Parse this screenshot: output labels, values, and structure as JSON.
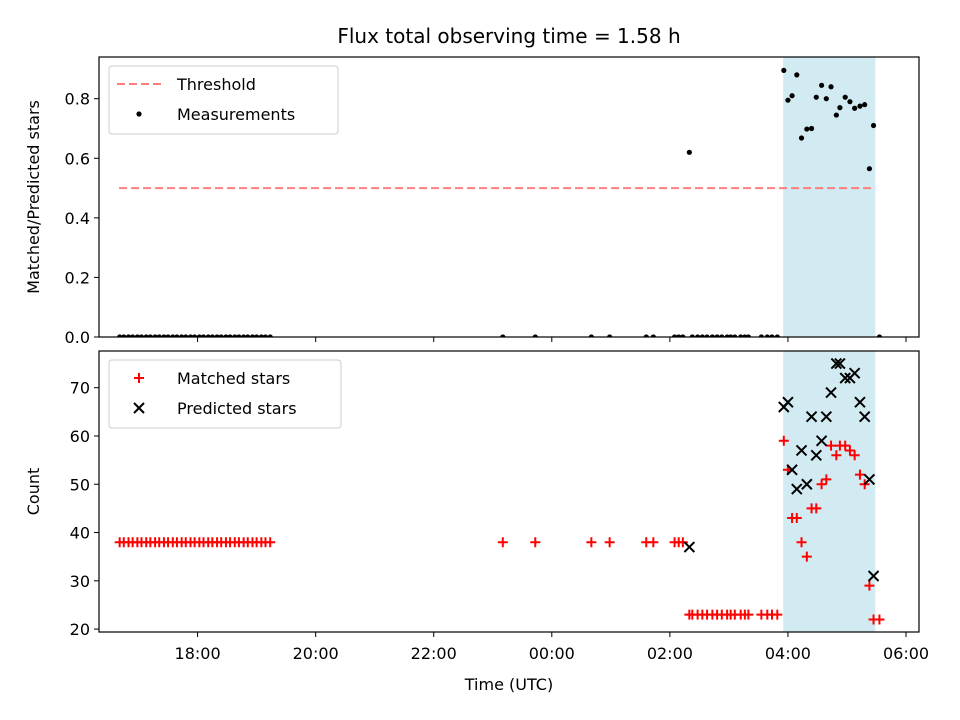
{
  "title": "Flux total observing time = 1.58 h",
  "colors": {
    "threshold": "#ff7f7f",
    "measurements": "#000000",
    "matched": "#ff0000",
    "predicted": "#000000",
    "highlight": "#add8e6"
  },
  "chart_data": [
    {
      "type": "scatter",
      "panel": "top",
      "xlabel": "",
      "ylabel": "Matched/Predicted stars",
      "xlim": [
        16.33,
        30.22
      ],
      "ylim": [
        0,
        0.94
      ],
      "yticks": [
        0.0,
        0.2,
        0.4,
        0.6,
        0.8
      ],
      "ytick_labels": [
        "0.0",
        "0.2",
        "0.4",
        "0.6",
        "0.8"
      ],
      "grid": false,
      "legend": "top-left",
      "highlight_span": [
        27.92,
        29.48
      ],
      "threshold": {
        "name": "Threshold",
        "value": 0.5,
        "x_range": [
          16.67,
          29.48
        ]
      },
      "series": [
        {
          "name": "Measurements",
          "marker": "dot",
          "points": [
            [
              16.68,
              0
            ],
            [
              16.75,
              0
            ],
            [
              16.83,
              0
            ],
            [
              16.9,
              0
            ],
            [
              16.98,
              0
            ],
            [
              17.05,
              0
            ],
            [
              17.13,
              0
            ],
            [
              17.2,
              0
            ],
            [
              17.28,
              0
            ],
            [
              17.35,
              0
            ],
            [
              17.43,
              0
            ],
            [
              17.5,
              0
            ],
            [
              17.58,
              0
            ],
            [
              17.65,
              0
            ],
            [
              17.73,
              0
            ],
            [
              17.8,
              0
            ],
            [
              17.88,
              0
            ],
            [
              17.95,
              0
            ],
            [
              18.03,
              0
            ],
            [
              18.1,
              0
            ],
            [
              18.18,
              0
            ],
            [
              18.25,
              0
            ],
            [
              18.33,
              0
            ],
            [
              18.4,
              0
            ],
            [
              18.48,
              0
            ],
            [
              18.55,
              0
            ],
            [
              18.63,
              0
            ],
            [
              18.7,
              0
            ],
            [
              18.78,
              0
            ],
            [
              18.85,
              0
            ],
            [
              18.93,
              0
            ],
            [
              19.0,
              0
            ],
            [
              19.08,
              0
            ],
            [
              19.15,
              0
            ],
            [
              19.23,
              0
            ],
            [
              23.17,
              0
            ],
            [
              23.72,
              0
            ],
            [
              24.67,
              0
            ],
            [
              24.98,
              0
            ],
            [
              25.6,
              0
            ],
            [
              25.72,
              0
            ],
            [
              26.08,
              0
            ],
            [
              26.15,
              0
            ],
            [
              26.22,
              0
            ],
            [
              26.33,
              0.62
            ],
            [
              26.38,
              0
            ],
            [
              26.47,
              0
            ],
            [
              26.55,
              0
            ],
            [
              26.63,
              0
            ],
            [
              26.72,
              0
            ],
            [
              26.8,
              0
            ],
            [
              26.88,
              0
            ],
            [
              26.97,
              0
            ],
            [
              27.03,
              0
            ],
            [
              27.1,
              0
            ],
            [
              27.2,
              0
            ],
            [
              27.27,
              0
            ],
            [
              27.33,
              0
            ],
            [
              27.55,
              0
            ],
            [
              27.65,
              0
            ],
            [
              27.73,
              0
            ],
            [
              27.82,
              0
            ],
            [
              27.93,
              0.895
            ],
            [
              28.0,
              0.795
            ],
            [
              28.07,
              0.81
            ],
            [
              28.15,
              0.88
            ],
            [
              28.23,
              0.668
            ],
            [
              28.32,
              0.698
            ],
            [
              28.4,
              0.7
            ],
            [
              28.48,
              0.805
            ],
            [
              28.57,
              0.845
            ],
            [
              28.65,
              0.8
            ],
            [
              28.73,
              0.84
            ],
            [
              28.82,
              0.745
            ],
            [
              28.88,
              0.77
            ],
            [
              28.97,
              0.805
            ],
            [
              29.05,
              0.79
            ],
            [
              29.13,
              0.768
            ],
            [
              29.22,
              0.775
            ],
            [
              29.3,
              0.78
            ],
            [
              29.38,
              0.565
            ],
            [
              29.45,
              0.71
            ],
            [
              29.55,
              0
            ]
          ]
        }
      ]
    },
    {
      "type": "scatter",
      "panel": "bottom",
      "xlabel": "Time (UTC)",
      "ylabel": "Count",
      "xlim": [
        16.33,
        30.22
      ],
      "ylim": [
        19.4,
        77.6
      ],
      "yticks": [
        20,
        30,
        40,
        50,
        60,
        70
      ],
      "ytick_labels": [
        "20",
        "30",
        "40",
        "50",
        "60",
        "70"
      ],
      "xticks": [
        18,
        20,
        22,
        24,
        26,
        28,
        30
      ],
      "xtick_labels": [
        "18:00",
        "20:00",
        "22:00",
        "00:00",
        "02:00",
        "04:00",
        "06:00"
      ],
      "grid": false,
      "legend": "top-left",
      "highlight_span": [
        27.92,
        29.48
      ],
      "series": [
        {
          "name": "Matched stars",
          "marker": "plus",
          "points": [
            [
              16.68,
              38
            ],
            [
              16.75,
              38
            ],
            [
              16.83,
              38
            ],
            [
              16.9,
              38
            ],
            [
              16.98,
              38
            ],
            [
              17.05,
              38
            ],
            [
              17.13,
              38
            ],
            [
              17.2,
              38
            ],
            [
              17.28,
              38
            ],
            [
              17.35,
              38
            ],
            [
              17.43,
              38
            ],
            [
              17.5,
              38
            ],
            [
              17.58,
              38
            ],
            [
              17.65,
              38
            ],
            [
              17.73,
              38
            ],
            [
              17.8,
              38
            ],
            [
              17.88,
              38
            ],
            [
              17.95,
              38
            ],
            [
              18.03,
              38
            ],
            [
              18.1,
              38
            ],
            [
              18.18,
              38
            ],
            [
              18.25,
              38
            ],
            [
              18.33,
              38
            ],
            [
              18.4,
              38
            ],
            [
              18.48,
              38
            ],
            [
              18.55,
              38
            ],
            [
              18.63,
              38
            ],
            [
              18.7,
              38
            ],
            [
              18.78,
              38
            ],
            [
              18.85,
              38
            ],
            [
              18.93,
              38
            ],
            [
              19.0,
              38
            ],
            [
              19.08,
              38
            ],
            [
              19.15,
              38
            ],
            [
              19.23,
              38
            ],
            [
              23.17,
              38
            ],
            [
              23.72,
              38
            ],
            [
              24.67,
              38
            ],
            [
              24.98,
              38
            ],
            [
              25.6,
              38
            ],
            [
              25.72,
              38
            ],
            [
              26.08,
              38
            ],
            [
              26.15,
              38
            ],
            [
              26.22,
              38
            ],
            [
              26.33,
              23
            ],
            [
              26.38,
              23
            ],
            [
              26.47,
              23
            ],
            [
              26.55,
              23
            ],
            [
              26.63,
              23
            ],
            [
              26.72,
              23
            ],
            [
              26.8,
              23
            ],
            [
              26.88,
              23
            ],
            [
              26.97,
              23
            ],
            [
              27.03,
              23
            ],
            [
              27.1,
              23
            ],
            [
              27.2,
              23
            ],
            [
              27.27,
              23
            ],
            [
              27.33,
              23
            ],
            [
              27.55,
              23
            ],
            [
              27.65,
              23
            ],
            [
              27.73,
              23
            ],
            [
              27.82,
              23
            ],
            [
              27.93,
              59
            ],
            [
              28.0,
              53
            ],
            [
              28.07,
              43
            ],
            [
              28.15,
              43
            ],
            [
              28.23,
              38
            ],
            [
              28.32,
              35
            ],
            [
              28.4,
              45
            ],
            [
              28.48,
              45
            ],
            [
              28.57,
              50
            ],
            [
              28.65,
              51
            ],
            [
              28.73,
              58
            ],
            [
              28.82,
              56
            ],
            [
              28.88,
              58
            ],
            [
              28.97,
              58
            ],
            [
              29.05,
              57
            ],
            [
              29.13,
              56
            ],
            [
              29.22,
              52
            ],
            [
              29.3,
              50
            ],
            [
              29.38,
              29
            ],
            [
              29.45,
              22
            ],
            [
              29.55,
              22
            ]
          ]
        },
        {
          "name": "Predicted stars",
          "marker": "x",
          "points": [
            [
              26.33,
              37
            ],
            [
              27.93,
              66
            ],
            [
              28.0,
              67
            ],
            [
              28.07,
              53
            ],
            [
              28.15,
              49
            ],
            [
              28.23,
              57
            ],
            [
              28.32,
              50
            ],
            [
              28.4,
              64
            ],
            [
              28.48,
              56
            ],
            [
              28.57,
              59
            ],
            [
              28.65,
              64
            ],
            [
              28.73,
              69
            ],
            [
              28.82,
              75
            ],
            [
              28.88,
              75
            ],
            [
              28.97,
              72
            ],
            [
              29.05,
              72
            ],
            [
              29.13,
              73
            ],
            [
              29.22,
              67
            ],
            [
              29.3,
              64
            ],
            [
              29.38,
              51
            ],
            [
              29.45,
              31
            ]
          ]
        }
      ]
    }
  ]
}
